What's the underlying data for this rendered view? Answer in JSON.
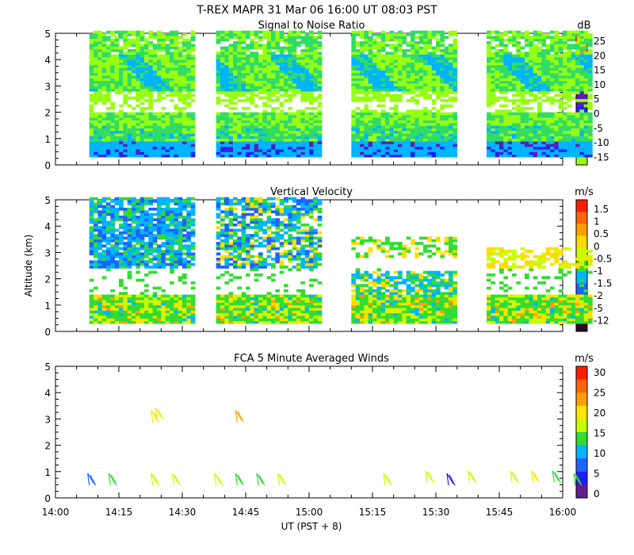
{
  "header": {
    "title": "T-REX   MAPR 31 Mar 06   16:00 UT   08:03   PST"
  },
  "x_axis": {
    "label": "UT  (PST + 8)",
    "ticks": [
      "14:00",
      "14:15",
      "14:30",
      "14:45",
      "15:00",
      "15:15",
      "15:30",
      "15:45",
      "16:00"
    ],
    "range_minutes": [
      0,
      120
    ]
  },
  "y_axis": {
    "label": "Altitude (km)",
    "ticks": [
      "0",
      "1",
      "2",
      "3",
      "4",
      "5"
    ],
    "range_km": [
      0,
      5
    ]
  },
  "chart_data": [
    {
      "type": "heatmap",
      "title": "Signal to Noise Ratio",
      "unit": "dB",
      "colorbar": {
        "labels": [
          "25",
          "20",
          "15",
          "10",
          "5",
          "0",
          "-5",
          "-10",
          "-15"
        ],
        "colors": [
          "#ffc800",
          "#ff8c00",
          "#ff3c00",
          "#640a64",
          "#5a1eb4",
          "#1e1eff",
          "#00b4ff",
          "#32dc64",
          "#96ff14"
        ]
      },
      "segments_minutes": [
        [
          8,
          33
        ],
        [
          38,
          63
        ],
        [
          70,
          95
        ],
        [
          102,
          127
        ]
      ],
      "altitude_km": [
        0.3,
        5.0
      ],
      "description_levels_db": {
        "low_band_0_1km": -5,
        "mid_1_2km": -10,
        "white_gap_2_2.5km": null,
        "upper_2.5_5km": -12
      }
    },
    {
      "type": "heatmap",
      "title": "Vertical Velocity",
      "unit": "m/s",
      "colorbar": {
        "labels": [
          "1.5",
          "1",
          "0.5",
          "0",
          "-0.5",
          "-1",
          "-1.5",
          "-2",
          "-5",
          "-12"
        ],
        "colors": [
          "#ff1e00",
          "#ff6400",
          "#ffa000",
          "#ffdc00",
          "#c8ff00",
          "#32dc32",
          "#00b4ff",
          "#1e64ff",
          "#1e1eb4",
          "#641e64",
          "#2d0a28"
        ]
      },
      "segments_minutes": [
        [
          8,
          33
        ],
        [
          38,
          63
        ],
        [
          70,
          95
        ],
        [
          102,
          127
        ]
      ],
      "altitude_km": [
        0.3,
        5.0
      ]
    },
    {
      "type": "scatter",
      "title": "FCA 5 Minute Averaged Winds",
      "unit": "m/s",
      "colorbar": {
        "labels": [
          "30",
          "25",
          "20",
          "15",
          "10",
          "5",
          "0"
        ],
        "colors": [
          "#ff1e00",
          "#ff6400",
          "#ffa000",
          "#ffe600",
          "#c8ff00",
          "#32dc32",
          "#00b4ff",
          "#1e64ff",
          "#1e1eff",
          "#641e8c"
        ]
      },
      "barbs": [
        {
          "t": 8,
          "alt": 0.6,
          "speed": 8
        },
        {
          "t": 13,
          "alt": 0.6,
          "speed": 15
        },
        {
          "t": 23,
          "alt": 0.6,
          "speed": 18
        },
        {
          "t": 28,
          "alt": 0.6,
          "speed": 17
        },
        {
          "t": 23,
          "alt": 3.0,
          "speed": 20
        },
        {
          "t": 24,
          "alt": 3.1,
          "speed": 19
        },
        {
          "t": 38,
          "alt": 0.6,
          "speed": 17
        },
        {
          "t": 43,
          "alt": 0.6,
          "speed": 14
        },
        {
          "t": 43,
          "alt": 3.0,
          "speed": 22
        },
        {
          "t": 48,
          "alt": 0.6,
          "speed": 14
        },
        {
          "t": 53,
          "alt": 0.6,
          "speed": 16
        },
        {
          "t": 78,
          "alt": 0.6,
          "speed": 16
        },
        {
          "t": 88,
          "alt": 0.7,
          "speed": 17
        },
        {
          "t": 93,
          "alt": 0.6,
          "speed": 5
        },
        {
          "t": 98,
          "alt": 0.7,
          "speed": 16
        },
        {
          "t": 108,
          "alt": 0.7,
          "speed": 18
        },
        {
          "t": 113,
          "alt": 0.7,
          "speed": 19
        },
        {
          "t": 118,
          "alt": 0.7,
          "speed": 15
        },
        {
          "t": 123,
          "alt": 0.6,
          "speed": 14
        }
      ]
    }
  ]
}
